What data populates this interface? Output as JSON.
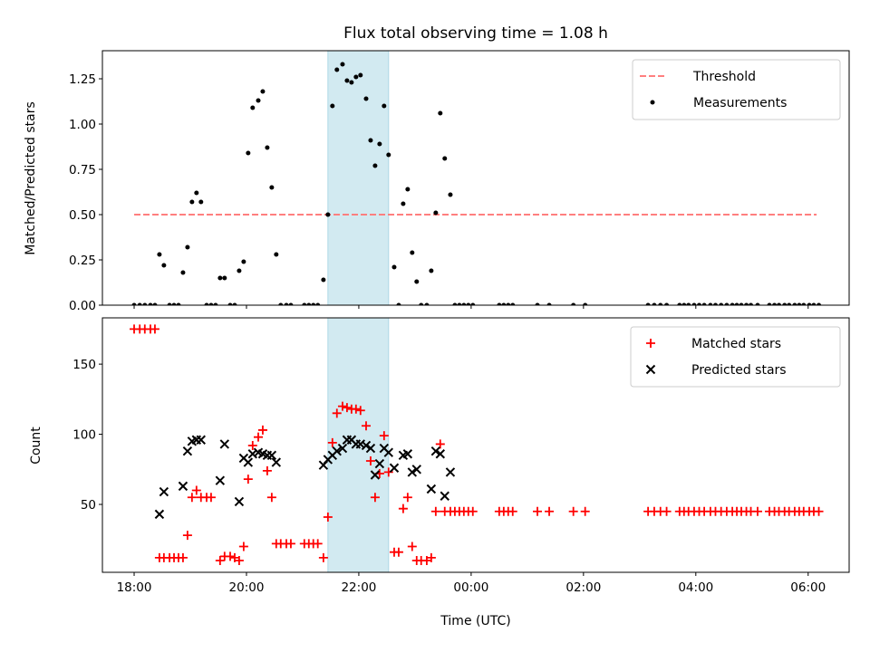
{
  "chart_data": [
    {
      "type": "scatter",
      "title": "Flux total observing time = 1.08 h",
      "xlabel": "",
      "ylabel": "Matched/Predicted stars",
      "xlim": [
        17.435,
        30.73
      ],
      "ylim": [
        0,
        1.405
      ],
      "yticks": [
        0,
        0.25,
        0.5,
        0.75,
        1.0,
        1.25
      ],
      "ytick_labels": [
        "0.00",
        "0.25",
        "0.50",
        "0.75",
        "1.00",
        "1.25"
      ],
      "shaded_span": [
        21.45,
        22.53
      ],
      "shaded_color": "#add8e6",
      "threshold": {
        "name": "Threshold",
        "value": 0.5,
        "x_range": [
          18.0,
          30.15
        ],
        "color": "#ff7f7f"
      },
      "legend": [
        "Threshold",
        "Measurements"
      ],
      "legend_position": "top-right",
      "series": [
        {
          "name": "Measurements",
          "color": "#000000",
          "points": [
            [
              18.0,
              0
            ],
            [
              18.1,
              0
            ],
            [
              18.19,
              0
            ],
            [
              18.29,
              0
            ],
            [
              18.37,
              0
            ],
            [
              18.45,
              0.28
            ],
            [
              18.53,
              0.22
            ],
            [
              18.63,
              0
            ],
            [
              18.71,
              0
            ],
            [
              18.79,
              0
            ],
            [
              18.87,
              0.18
            ],
            [
              18.95,
              0.32
            ],
            [
              19.03,
              0.57
            ],
            [
              19.11,
              0.62
            ],
            [
              19.19,
              0.57
            ],
            [
              19.29,
              0
            ],
            [
              19.37,
              0
            ],
            [
              19.45,
              0
            ],
            [
              19.53,
              0.15
            ],
            [
              19.61,
              0.15
            ],
            [
              19.71,
              0
            ],
            [
              19.79,
              0
            ],
            [
              19.87,
              0.19
            ],
            [
              19.95,
              0.24
            ],
            [
              20.03,
              0.84
            ],
            [
              20.11,
              1.09
            ],
            [
              20.21,
              1.13
            ],
            [
              20.29,
              1.18
            ],
            [
              20.37,
              0.87
            ],
            [
              20.45,
              0.65
            ],
            [
              20.53,
              0.28
            ],
            [
              20.61,
              0
            ],
            [
              20.71,
              0
            ],
            [
              20.79,
              0
            ],
            [
              21.03,
              0
            ],
            [
              21.11,
              0
            ],
            [
              21.19,
              0
            ],
            [
              21.27,
              0
            ],
            [
              21.37,
              0.14
            ],
            [
              21.45,
              0.5
            ],
            [
              21.53,
              1.1
            ],
            [
              21.61,
              1.3
            ],
            [
              21.71,
              1.33
            ],
            [
              21.79,
              1.24
            ],
            [
              21.87,
              1.23
            ],
            [
              21.95,
              1.26
            ],
            [
              22.03,
              1.27
            ],
            [
              22.13,
              1.14
            ],
            [
              22.21,
              0.91
            ],
            [
              22.29,
              0.77
            ],
            [
              22.37,
              0.89
            ],
            [
              22.45,
              1.1
            ],
            [
              22.53,
              0.83
            ],
            [
              22.63,
              0.21
            ],
            [
              22.71,
              0
            ],
            [
              22.79,
              0.56
            ],
            [
              22.87,
              0.64
            ],
            [
              22.95,
              0.29
            ],
            [
              23.03,
              0.13
            ],
            [
              23.11,
              0
            ],
            [
              23.21,
              0
            ],
            [
              23.29,
              0.19
            ],
            [
              23.37,
              0.51
            ],
            [
              23.45,
              1.06
            ],
            [
              23.53,
              0.81
            ],
            [
              23.63,
              0.61
            ],
            [
              23.71,
              0
            ],
            [
              23.79,
              0
            ],
            [
              23.87,
              0
            ],
            [
              23.95,
              0
            ],
            [
              24.03,
              0
            ],
            [
              24.5,
              0
            ],
            [
              24.58,
              0
            ],
            [
              24.66,
              0
            ],
            [
              24.74,
              0
            ],
            [
              25.18,
              0
            ],
            [
              25.39,
              0
            ],
            [
              25.82,
              0
            ],
            [
              26.03,
              0
            ],
            [
              27.15,
              0
            ],
            [
              27.26,
              0
            ],
            [
              27.37,
              0
            ],
            [
              27.48,
              0
            ],
            [
              27.71,
              0
            ],
            [
              27.79,
              0
            ],
            [
              27.87,
              0
            ],
            [
              27.97,
              0
            ],
            [
              28.06,
              0
            ],
            [
              28.15,
              0
            ],
            [
              28.26,
              0
            ],
            [
              28.35,
              0
            ],
            [
              28.45,
              0
            ],
            [
              28.55,
              0
            ],
            [
              28.65,
              0
            ],
            [
              28.73,
              0
            ],
            [
              28.81,
              0
            ],
            [
              28.9,
              0
            ],
            [
              28.98,
              0
            ],
            [
              29.1,
              0
            ],
            [
              29.31,
              0
            ],
            [
              29.4,
              0
            ],
            [
              29.48,
              0
            ],
            [
              29.58,
              0
            ],
            [
              29.66,
              0
            ],
            [
              29.76,
              0
            ],
            [
              29.84,
              0
            ],
            [
              29.92,
              0
            ],
            [
              30.02,
              0
            ],
            [
              30.1,
              0
            ],
            [
              30.19,
              0
            ]
          ]
        }
      ]
    },
    {
      "type": "scatter",
      "title": "",
      "xlabel": "Time (UTC)",
      "ylabel": "Count",
      "xlim": [
        17.435,
        30.73
      ],
      "ylim": [
        1.6,
        183
      ],
      "yticks": [
        50,
        100,
        150
      ],
      "ytick_labels": [
        "50",
        "100",
        "150"
      ],
      "xticks": [
        18,
        20,
        22,
        24,
        26,
        28,
        30
      ],
      "xtick_labels": [
        "18:00",
        "20:00",
        "22:00",
        "00:00",
        "02:00",
        "04:00",
        "06:00"
      ],
      "shaded_span": [
        21.45,
        22.53
      ],
      "shaded_color": "#add8e6",
      "legend": [
        "Matched stars",
        "Predicted stars"
      ],
      "legend_position": "top-right",
      "series": [
        {
          "name": "Matched stars",
          "marker": "+",
          "color": "#ff0000",
          "points": [
            [
              18.0,
              175
            ],
            [
              18.1,
              175
            ],
            [
              18.19,
              175
            ],
            [
              18.29,
              175
            ],
            [
              18.37,
              175
            ],
            [
              18.45,
              12
            ],
            [
              18.53,
              12
            ],
            [
              18.63,
              12
            ],
            [
              18.71,
              12
            ],
            [
              18.79,
              12
            ],
            [
              18.87,
              12
            ],
            [
              18.95,
              28
            ],
            [
              19.03,
              55
            ],
            [
              19.11,
              60
            ],
            [
              19.19,
              55
            ],
            [
              19.29,
              55
            ],
            [
              19.37,
              55
            ],
            [
              19.53,
              10
            ],
            [
              19.61,
              13
            ],
            [
              19.71,
              13
            ],
            [
              19.79,
              12
            ],
            [
              19.87,
              10
            ],
            [
              19.95,
              20
            ],
            [
              20.03,
              68
            ],
            [
              20.11,
              92
            ],
            [
              20.21,
              98
            ],
            [
              20.29,
              103
            ],
            [
              20.37,
              74
            ],
            [
              20.45,
              55
            ],
            [
              20.53,
              22
            ],
            [
              20.61,
              22
            ],
            [
              20.71,
              22
            ],
            [
              20.79,
              22
            ],
            [
              21.03,
              22
            ],
            [
              21.11,
              22
            ],
            [
              21.19,
              22
            ],
            [
              21.27,
              22
            ],
            [
              21.37,
              12
            ],
            [
              21.45,
              41
            ],
            [
              21.53,
              94
            ],
            [
              21.61,
              115
            ],
            [
              21.71,
              120
            ],
            [
              21.79,
              119
            ],
            [
              21.87,
              118
            ],
            [
              21.95,
              118
            ],
            [
              22.03,
              117
            ],
            [
              22.13,
              106
            ],
            [
              22.21,
              81
            ],
            [
              22.29,
              55
            ],
            [
              22.37,
              72
            ],
            [
              22.45,
              99
            ],
            [
              22.53,
              73
            ],
            [
              22.63,
              16
            ],
            [
              22.71,
              16
            ],
            [
              22.79,
              47
            ],
            [
              22.87,
              55
            ],
            [
              22.95,
              20
            ],
            [
              23.03,
              10
            ],
            [
              23.11,
              10
            ],
            [
              23.21,
              10
            ],
            [
              23.29,
              12
            ],
            [
              23.37,
              45
            ],
            [
              23.45,
              93
            ],
            [
              23.53,
              45
            ],
            [
              23.63,
              45
            ],
            [
              23.71,
              45
            ],
            [
              23.79,
              45
            ],
            [
              23.87,
              45
            ],
            [
              23.95,
              45
            ],
            [
              24.03,
              45
            ],
            [
              24.5,
              45
            ],
            [
              24.58,
              45
            ],
            [
              24.66,
              45
            ],
            [
              24.74,
              45
            ],
            [
              25.18,
              45
            ],
            [
              25.39,
              45
            ],
            [
              25.82,
              45
            ],
            [
              26.03,
              45
            ],
            [
              27.15,
              45
            ],
            [
              27.26,
              45
            ],
            [
              27.37,
              45
            ],
            [
              27.48,
              45
            ],
            [
              27.71,
              45
            ],
            [
              27.79,
              45
            ],
            [
              27.87,
              45
            ],
            [
              27.97,
              45
            ],
            [
              28.06,
              45
            ],
            [
              28.15,
              45
            ],
            [
              28.26,
              45
            ],
            [
              28.35,
              45
            ],
            [
              28.45,
              45
            ],
            [
              28.55,
              45
            ],
            [
              28.65,
              45
            ],
            [
              28.73,
              45
            ],
            [
              28.81,
              45
            ],
            [
              28.9,
              45
            ],
            [
              28.98,
              45
            ],
            [
              29.1,
              45
            ],
            [
              29.31,
              45
            ],
            [
              29.4,
              45
            ],
            [
              29.48,
              45
            ],
            [
              29.58,
              45
            ],
            [
              29.66,
              45
            ],
            [
              29.76,
              45
            ],
            [
              29.84,
              45
            ],
            [
              29.92,
              45
            ],
            [
              30.02,
              45
            ],
            [
              30.1,
              45
            ],
            [
              30.19,
              45
            ]
          ]
        },
        {
          "name": "Predicted stars",
          "marker": "x",
          "color": "#000000",
          "points": [
            [
              18.45,
              43
            ],
            [
              18.53,
              59
            ],
            [
              18.87,
              63
            ],
            [
              18.95,
              88
            ],
            [
              19.03,
              95
            ],
            [
              19.11,
              96
            ],
            [
              19.19,
              96
            ],
            [
              19.53,
              67
            ],
            [
              19.61,
              93
            ],
            [
              19.87,
              52
            ],
            [
              19.95,
              83
            ],
            [
              20.03,
              80
            ],
            [
              20.11,
              86
            ],
            [
              20.21,
              87
            ],
            [
              20.29,
              86
            ],
            [
              20.37,
              85
            ],
            [
              20.45,
              85
            ],
            [
              20.53,
              80
            ],
            [
              21.37,
              78
            ],
            [
              21.45,
              82
            ],
            [
              21.53,
              85
            ],
            [
              21.61,
              88
            ],
            [
              21.71,
              90
            ],
            [
              21.79,
              96
            ],
            [
              21.87,
              96
            ],
            [
              21.95,
              93
            ],
            [
              22.03,
              93
            ],
            [
              22.13,
              92
            ],
            [
              22.21,
              90
            ],
            [
              22.29,
              71
            ],
            [
              22.37,
              79
            ],
            [
              22.45,
              90
            ],
            [
              22.53,
              87
            ],
            [
              22.63,
              76
            ],
            [
              22.79,
              85
            ],
            [
              22.87,
              86
            ],
            [
              22.95,
              73
            ],
            [
              23.03,
              75
            ],
            [
              23.29,
              61
            ],
            [
              23.37,
              88
            ],
            [
              23.45,
              86
            ],
            [
              23.53,
              56
            ],
            [
              23.63,
              73
            ]
          ]
        }
      ]
    }
  ]
}
